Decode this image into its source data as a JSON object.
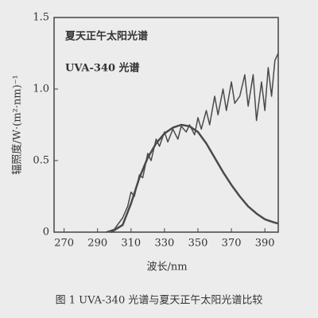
{
  "chart_data": {
    "type": "line",
    "caption": "图 1 UVA-340 光谱与夏天正午太阳光谱比较",
    "xlabel": "波长/nm",
    "ylabel": "辐照度/W·(m²·nm)⁻¹",
    "xlim": [
      264,
      398
    ],
    "xticks": [
      270,
      290,
      310,
      330,
      350,
      370,
      390
    ],
    "ylim": [
      0,
      1.5
    ],
    "yticks": [
      0,
      0.5,
      {
        "value": 1,
        "label": "1.0"
      },
      1.5
    ],
    "series": [
      {
        "name": "夏天正午太阳光谱",
        "color": "#4a4a4a",
        "x": [
          295,
          300,
          305,
          308,
          310,
          312,
          315,
          317,
          320,
          322,
          325,
          327,
          330,
          332,
          335,
          338,
          340,
          343,
          345,
          348,
          350,
          352,
          355,
          357,
          360,
          362,
          365,
          367,
          370,
          372,
          375,
          378,
          380,
          383,
          385,
          388,
          390,
          392,
          394,
          396,
          398
        ],
        "values": [
          0,
          0.02,
          0.1,
          0.18,
          0.28,
          0.25,
          0.4,
          0.38,
          0.55,
          0.5,
          0.65,
          0.6,
          0.7,
          0.63,
          0.72,
          0.65,
          0.74,
          0.7,
          0.75,
          0.68,
          0.8,
          0.72,
          0.85,
          0.75,
          0.95,
          0.82,
          1.0,
          0.85,
          1.05,
          0.9,
          0.95,
          1.1,
          0.88,
          1.1,
          0.78,
          1.05,
          0.85,
          1.15,
          0.95,
          1.2,
          1.25
        ]
      },
      {
        "name": "UVA-340 光谱",
        "color": "#4a4a4a",
        "x": [
          298,
          305,
          310,
          315,
          320,
          325,
          330,
          335,
          340,
          345,
          350,
          355,
          360,
          365,
          370,
          375,
          380,
          385,
          390,
          395,
          398
        ],
        "values": [
          0,
          0.05,
          0.2,
          0.38,
          0.52,
          0.62,
          0.69,
          0.73,
          0.75,
          0.74,
          0.7,
          0.62,
          0.52,
          0.42,
          0.33,
          0.25,
          0.18,
          0.13,
          0.09,
          0.07,
          0.06
        ]
      }
    ]
  }
}
